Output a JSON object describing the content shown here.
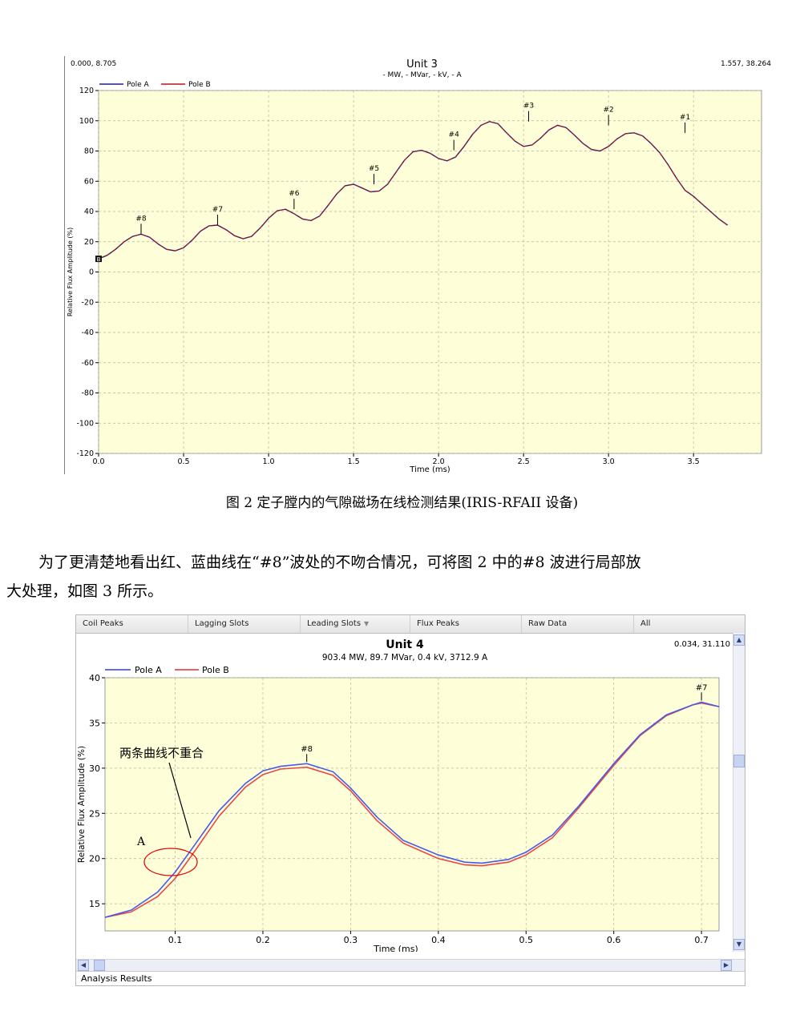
{
  "chart1": {
    "title": "Unit 3",
    "subtitle": "- MW, - MVar, - kV, - A",
    "corner_left": "0.000, 8.705",
    "corner_right": "1.557, 38.264",
    "ylabel": "Relative Flux Amplitude (%)",
    "xlabel": "Time (ms)",
    "legend": [
      "Pole A",
      "Pole B"
    ],
    "colors": {
      "pole_a": "#1f1f8f",
      "pole_b": "#b01818",
      "plot_bg": "#fefed8",
      "grid": "#b5b5a0"
    },
    "yticks": [
      "120",
      "100",
      "80",
      "60",
      "40",
      "20",
      "0",
      "-20",
      "-40",
      "-60",
      "-80",
      "-100",
      "-120"
    ],
    "xticks": [
      "0.0",
      "0.5",
      "1.0",
      "1.5",
      "2.0",
      "2.5",
      "3.0",
      "3.5"
    ],
    "peak_labels": [
      "#8",
      "#7",
      "#6",
      "#5",
      "#4",
      "#3",
      "#2",
      "#1"
    ],
    "marker_label": "B"
  },
  "caption": "图 2  定子膛内的气隙磁场在线检测结果(IRIS-RFAII 设备)",
  "paragraph_line1": "为了更清楚地看出红、蓝曲线在“#8”波处的不吻合情况，可将图 2 中的#8 波进行局部放",
  "paragraph_line2": "大处理，如图 3 所示。",
  "chart2": {
    "tabs": [
      "Coil Peaks",
      "Lagging Slots",
      "Leading Slots",
      "Flux Peaks",
      "Raw Data",
      "All"
    ],
    "title": "Unit 4",
    "subtitle": "903.4 MW, 89.7 MVar,  0.4 kV, 3712.9 A",
    "corner_right": "0.034, 31.110",
    "ylabel": "Relative Flux Amplitude (%)",
    "xlabel": "Time (ms)",
    "legend": [
      "Pole A",
      "Pole B"
    ],
    "colors": {
      "pole_a": "#4a5ae8",
      "pole_b": "#e84848",
      "plot_bg": "#fefed8",
      "grid": "#b5b5a0",
      "ellipse": "#e00000"
    },
    "yticks": [
      "40",
      "35",
      "30",
      "25",
      "20",
      "15"
    ],
    "xticks": [
      "0.1",
      "0.2",
      "0.3",
      "0.4",
      "0.5",
      "0.6",
      "0.7"
    ],
    "peak_labels": [
      "#8",
      "#7"
    ],
    "annotation": "两条曲线不重合",
    "point_label": "A",
    "status": "Analysis Results"
  },
  "chart_data": [
    {
      "type": "line",
      "title": "Unit 3",
      "xlabel": "Time (ms)",
      "ylabel": "Relative Flux Amplitude (%)",
      "xlim": [
        0,
        3.9
      ],
      "ylim": [
        -120,
        120
      ],
      "grid": true,
      "legend_position": "top-left",
      "x": [
        0,
        0.05,
        0.1,
        0.15,
        0.2,
        0.25,
        0.3,
        0.35,
        0.4,
        0.45,
        0.5,
        0.55,
        0.6,
        0.65,
        0.7,
        0.75,
        0.8,
        0.85,
        0.9,
        0.95,
        1.0,
        1.05,
        1.1,
        1.15,
        1.2,
        1.25,
        1.3,
        1.35,
        1.4,
        1.45,
        1.5,
        1.55,
        1.6,
        1.65,
        1.7,
        1.75,
        1.8,
        1.85,
        1.9,
        1.95,
        2.0,
        2.05,
        2.1,
        2.15,
        2.2,
        2.25,
        2.3,
        2.35,
        2.4,
        2.45,
        2.5,
        2.55,
        2.6,
        2.65,
        2.7,
        2.75,
        2.8,
        2.85,
        2.9,
        2.95,
        3.0,
        3.05,
        3.1,
        3.15,
        3.2,
        3.25,
        3.3,
        3.35,
        3.4,
        3.45,
        3.5,
        3.55,
        3.6,
        3.65,
        3.7
      ],
      "series": [
        {
          "name": "Pole A",
          "values": [
            8.7,
            11,
            15,
            20,
            23.5,
            25,
            23,
            18.5,
            15,
            14,
            16,
            21,
            27,
            30.5,
            31,
            28,
            24,
            22,
            23.5,
            29,
            35.5,
            40.5,
            41.5,
            38.5,
            35,
            34,
            37,
            44,
            51.5,
            57,
            58,
            55.5,
            53,
            53.5,
            58,
            66,
            74,
            79.5,
            80.5,
            78.5,
            75,
            73.5,
            76,
            83,
            91,
            97,
            99.5,
            98,
            92,
            86.5,
            83,
            84,
            88.5,
            94,
            97,
            95.5,
            90.5,
            85,
            81,
            80,
            83,
            88,
            91.5,
            92,
            90,
            85,
            79,
            71,
            62,
            54,
            50,
            45,
            40,
            35,
            31
          ]
        },
        {
          "name": "Pole B",
          "values": [
            8.7,
            11,
            15,
            20,
            23.5,
            25,
            23,
            18.5,
            15,
            14,
            16,
            21,
            27,
            30.5,
            31,
            28,
            24,
            22,
            23.5,
            29,
            35.5,
            40.5,
            41.5,
            38.5,
            35,
            34,
            37,
            44,
            51.5,
            57,
            58,
            55.5,
            53,
            53.5,
            58,
            66,
            74,
            79.5,
            80.5,
            78.5,
            75,
            73.5,
            76,
            83,
            91,
            97,
            99.5,
            98,
            92,
            86.5,
            83,
            84,
            88.5,
            94,
            97,
            95.5,
            90.5,
            85,
            81,
            80,
            83,
            88,
            91.5,
            92,
            90,
            85,
            79,
            71,
            62,
            54,
            50,
            45,
            40,
            35,
            31
          ]
        }
      ]
    },
    {
      "type": "line",
      "title": "Unit 4",
      "xlabel": "Time (ms)",
      "ylabel": "Relative Flux Amplitude (%)",
      "xlim": [
        0.02,
        0.72
      ],
      "ylim": [
        12,
        40
      ],
      "grid": true,
      "legend_position": "top-left",
      "x": [
        0.02,
        0.05,
        0.08,
        0.1,
        0.12,
        0.15,
        0.18,
        0.2,
        0.22,
        0.25,
        0.28,
        0.3,
        0.33,
        0.36,
        0.4,
        0.43,
        0.45,
        0.48,
        0.5,
        0.53,
        0.56,
        0.6,
        0.63,
        0.66,
        0.69,
        0.7,
        0.72
      ],
      "series": [
        {
          "name": "Pole A",
          "values": [
            13.5,
            14.3,
            16.3,
            18.5,
            21.2,
            25.3,
            28.3,
            29.7,
            30.2,
            30.5,
            29.6,
            27.8,
            24.6,
            22.0,
            20.4,
            19.6,
            19.5,
            19.9,
            20.7,
            22.6,
            25.8,
            30.5,
            33.7,
            35.9,
            37.0,
            37.3,
            36.8
          ]
        },
        {
          "name": "Pole B",
          "values": [
            13.5,
            14.1,
            15.8,
            17.8,
            20.5,
            24.7,
            27.9,
            29.3,
            29.9,
            30.1,
            29.2,
            27.5,
            24.2,
            21.7,
            20.0,
            19.3,
            19.2,
            19.6,
            20.4,
            22.3,
            25.6,
            30.3,
            33.6,
            35.8,
            37.0,
            37.2,
            36.8
          ]
        }
      ]
    }
  ]
}
